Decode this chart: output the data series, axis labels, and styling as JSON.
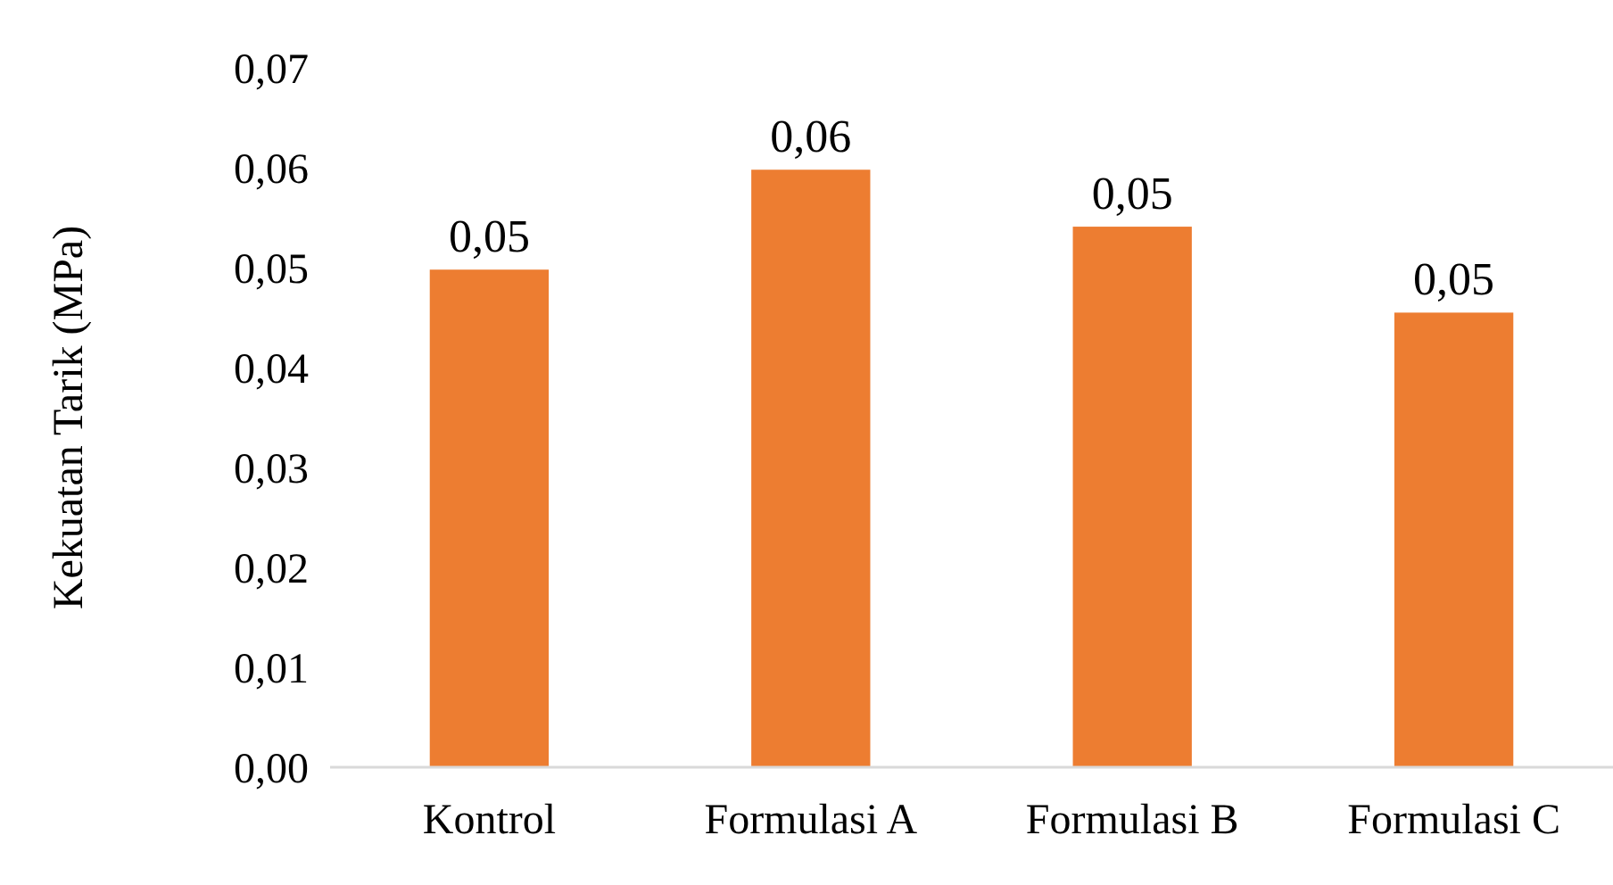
{
  "chart_data": {
    "type": "bar",
    "ylabel": "Kekuatan Tarik (MPa)",
    "categories": [
      "Kontrol",
      "Formulasi A",
      "Formulasi B",
      "Formulasi C"
    ],
    "values": [
      0.0498,
      0.0598,
      0.0541,
      0.0455
    ],
    "color": "#ed7d31",
    "value_labels": [
      "0,05",
      "0,06",
      "0,05",
      "0,05"
    ],
    "ylim": [
      0,
      0.07
    ],
    "yticks": [
      {
        "value": 0,
        "label": "0,00"
      },
      {
        "value": 0.01,
        "label": "0,01"
      },
      {
        "value": 0.02,
        "label": "0,02"
      },
      {
        "value": 0.03,
        "label": "0,03"
      },
      {
        "value": 0.04,
        "label": "0,04"
      },
      {
        "value": 0.05,
        "label": "0,05"
      },
      {
        "value": 0.06,
        "label": "0,06"
      },
      {
        "value": 0.07,
        "label": "0,07"
      }
    ],
    "grid": false
  }
}
